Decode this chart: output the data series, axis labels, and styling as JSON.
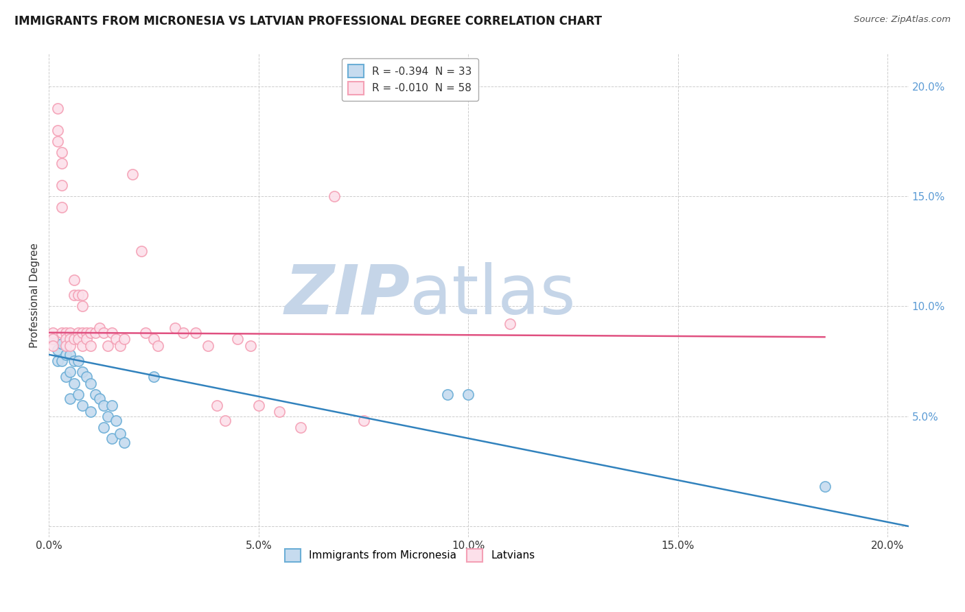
{
  "title": "IMMIGRANTS FROM MICRONESIA VS LATVIAN PROFESSIONAL DEGREE CORRELATION CHART",
  "source": "Source: ZipAtlas.com",
  "ylabel": "Professional Degree",
  "watermark_zip": "ZIP",
  "watermark_atlas": "atlas",
  "legend_entries": [
    {
      "label": "R = -0.394  N = 33"
    },
    {
      "label": "R = -0.010  N = 58"
    }
  ],
  "bottom_legend": [
    "Immigrants from Micronesia",
    "Latvians"
  ],
  "xlim": [
    0.0,
    0.205
  ],
  "ylim": [
    -0.005,
    0.215
  ],
  "x_ticks": [
    0.0,
    0.05,
    0.1,
    0.15,
    0.2
  ],
  "x_tick_labels": [
    "0.0%",
    "5.0%",
    "10.0%",
    "15.0%",
    "20.0%"
  ],
  "y_ticks": [
    0.0,
    0.05,
    0.1,
    0.15,
    0.2
  ],
  "y_tick_labels": [
    "",
    "5.0%",
    "10.0%",
    "15.0%",
    "20.0%"
  ],
  "blue_edge_color": "#6baed6",
  "blue_face_color": "#c6dbef",
  "pink_edge_color": "#f4a0b5",
  "pink_face_color": "#fce0ea",
  "blue_trend_color": "#3182bd",
  "pink_trend_color": "#e05080",
  "right_axis_color": "#5b9bd5",
  "grid_color": "#cccccc",
  "background_color": "#ffffff",
  "title_fontsize": 12,
  "watermark_color_zip": "#c5d5e8",
  "watermark_color_atlas": "#c5d5e8",
  "blue_scatter": [
    [
      0.001,
      0.085
    ],
    [
      0.002,
      0.08
    ],
    [
      0.002,
      0.075
    ],
    [
      0.003,
      0.083
    ],
    [
      0.003,
      0.075
    ],
    [
      0.004,
      0.078
    ],
    [
      0.004,
      0.068
    ],
    [
      0.005,
      0.078
    ],
    [
      0.005,
      0.07
    ],
    [
      0.005,
      0.058
    ],
    [
      0.006,
      0.075
    ],
    [
      0.006,
      0.065
    ],
    [
      0.007,
      0.075
    ],
    [
      0.007,
      0.06
    ],
    [
      0.008,
      0.07
    ],
    [
      0.008,
      0.055
    ],
    [
      0.009,
      0.068
    ],
    [
      0.01,
      0.065
    ],
    [
      0.01,
      0.052
    ],
    [
      0.011,
      0.06
    ],
    [
      0.012,
      0.058
    ],
    [
      0.013,
      0.055
    ],
    [
      0.013,
      0.045
    ],
    [
      0.014,
      0.05
    ],
    [
      0.015,
      0.055
    ],
    [
      0.015,
      0.04
    ],
    [
      0.016,
      0.048
    ],
    [
      0.017,
      0.042
    ],
    [
      0.018,
      0.038
    ],
    [
      0.095,
      0.06
    ],
    [
      0.1,
      0.06
    ],
    [
      0.185,
      0.018
    ],
    [
      0.025,
      0.068
    ]
  ],
  "pink_scatter": [
    [
      0.001,
      0.088
    ],
    [
      0.001,
      0.085
    ],
    [
      0.001,
      0.082
    ],
    [
      0.002,
      0.19
    ],
    [
      0.002,
      0.18
    ],
    [
      0.002,
      0.175
    ],
    [
      0.003,
      0.17
    ],
    [
      0.003,
      0.165
    ],
    [
      0.003,
      0.155
    ],
    [
      0.003,
      0.145
    ],
    [
      0.003,
      0.088
    ],
    [
      0.004,
      0.088
    ],
    [
      0.004,
      0.085
    ],
    [
      0.004,
      0.082
    ],
    [
      0.005,
      0.088
    ],
    [
      0.005,
      0.085
    ],
    [
      0.005,
      0.082
    ],
    [
      0.006,
      0.112
    ],
    [
      0.006,
      0.105
    ],
    [
      0.006,
      0.085
    ],
    [
      0.007,
      0.105
    ],
    [
      0.007,
      0.088
    ],
    [
      0.007,
      0.085
    ],
    [
      0.008,
      0.105
    ],
    [
      0.008,
      0.1
    ],
    [
      0.008,
      0.088
    ],
    [
      0.008,
      0.082
    ],
    [
      0.009,
      0.088
    ],
    [
      0.009,
      0.085
    ],
    [
      0.01,
      0.088
    ],
    [
      0.01,
      0.082
    ],
    [
      0.011,
      0.088
    ],
    [
      0.012,
      0.09
    ],
    [
      0.013,
      0.088
    ],
    [
      0.014,
      0.082
    ],
    [
      0.015,
      0.088
    ],
    [
      0.016,
      0.085
    ],
    [
      0.017,
      0.082
    ],
    [
      0.018,
      0.085
    ],
    [
      0.02,
      0.16
    ],
    [
      0.022,
      0.125
    ],
    [
      0.023,
      0.088
    ],
    [
      0.025,
      0.085
    ],
    [
      0.026,
      0.082
    ],
    [
      0.03,
      0.09
    ],
    [
      0.032,
      0.088
    ],
    [
      0.035,
      0.088
    ],
    [
      0.038,
      0.082
    ],
    [
      0.04,
      0.055
    ],
    [
      0.042,
      0.048
    ],
    [
      0.045,
      0.085
    ],
    [
      0.048,
      0.082
    ],
    [
      0.05,
      0.055
    ],
    [
      0.055,
      0.052
    ],
    [
      0.06,
      0.045
    ],
    [
      0.068,
      0.15
    ],
    [
      0.075,
      0.048
    ],
    [
      0.11,
      0.092
    ]
  ],
  "blue_trend": {
    "x_start": 0.0,
    "y_start": 0.078,
    "x_end": 0.205,
    "y_end": 0.0
  },
  "pink_trend": {
    "x_start": 0.0,
    "y_start": 0.088,
    "x_end": 0.185,
    "y_end": 0.086
  }
}
